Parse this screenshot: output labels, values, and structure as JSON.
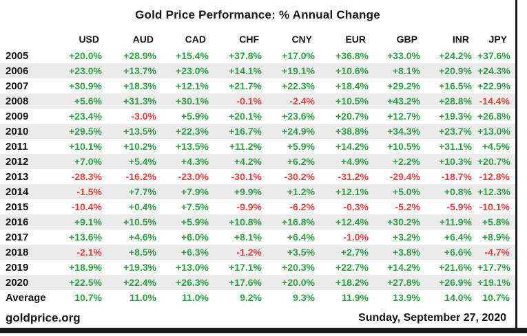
{
  "title": "Gold Price Performance: % Annual Change",
  "chart_data": {
    "type": "table",
    "title": "Gold Price Performance: % Annual Change",
    "columns": [
      "USD",
      "AUD",
      "CAD",
      "CHF",
      "CNY",
      "EUR",
      "GBP",
      "INR",
      "JPY"
    ],
    "rows": [
      {
        "label": "2005",
        "values": [
          "+20.0%",
          "+28.9%",
          "+15.4%",
          "+37.8%",
          "+17.0%",
          "+36.8%",
          "+33.0%",
          "+24.2%",
          "+37.6%"
        ]
      },
      {
        "label": "2006",
        "values": [
          "+23.0%",
          "+13.7%",
          "+23.0%",
          "+14.1%",
          "+19.1%",
          "+10.6%",
          "+8.1%",
          "+20.9%",
          "+24.3%"
        ]
      },
      {
        "label": "2007",
        "values": [
          "+30.9%",
          "+18.3%",
          "+12.1%",
          "+21.7%",
          "+22.3%",
          "+18.4%",
          "+29.2%",
          "+16.5%",
          "+22.9%"
        ]
      },
      {
        "label": "2008",
        "values": [
          "+5.6%",
          "+31.3%",
          "+30.1%",
          "-0.1%",
          "-2.4%",
          "+10.5%",
          "+43.2%",
          "+28.8%",
          "-14.4%"
        ]
      },
      {
        "label": "2009",
        "values": [
          "+23.4%",
          "-3.0%",
          "+5.9%",
          "+20.1%",
          "+23.6%",
          "+20.7%",
          "+12.7%",
          "+19.3%",
          "+26.8%"
        ]
      },
      {
        "label": "2010",
        "values": [
          "+29.5%",
          "+13.5%",
          "+22.3%",
          "+16.7%",
          "+24.9%",
          "+38.8%",
          "+34.3%",
          "+23.7%",
          "+13.0%"
        ]
      },
      {
        "label": "2011",
        "values": [
          "+10.1%",
          "+10.2%",
          "+13.5%",
          "+11.2%",
          "+5.9%",
          "+14.2%",
          "+10.5%",
          "+31.1%",
          "+4.5%"
        ]
      },
      {
        "label": "2012",
        "values": [
          "+7.0%",
          "+5.4%",
          "+4.3%",
          "+4.2%",
          "+6.2%",
          "+4.9%",
          "+2.2%",
          "+10.3%",
          "+20.7%"
        ]
      },
      {
        "label": "2013",
        "values": [
          "-28.3%",
          "-16.2%",
          "-23.0%",
          "-30.1%",
          "-30.2%",
          "-31.2%",
          "-29.4%",
          "-18.7%",
          "-12.8%"
        ]
      },
      {
        "label": "2014",
        "values": [
          "-1.5%",
          "+7.7%",
          "+7.9%",
          "+9.9%",
          "+1.2%",
          "+12.1%",
          "+5.0%",
          "+0.8%",
          "+12.3%"
        ]
      },
      {
        "label": "2015",
        "values": [
          "-10.4%",
          "+0.4%",
          "+7.5%",
          "-9.9%",
          "-6.2%",
          "-0.3%",
          "-5.2%",
          "-5.9%",
          "-10.1%"
        ]
      },
      {
        "label": "2016",
        "values": [
          "+9.1%",
          "+10.5%",
          "+5.9%",
          "+10.8%",
          "+16.8%",
          "+12.4%",
          "+30.2%",
          "+11.9%",
          "+5.8%"
        ]
      },
      {
        "label": "2017",
        "values": [
          "+13.6%",
          "+4.6%",
          "+6.0%",
          "+8.1%",
          "+6.4%",
          "-1.0%",
          "+3.2%",
          "+6.4%",
          "+8.9%"
        ]
      },
      {
        "label": "2018",
        "values": [
          "-2.1%",
          "+8.5%",
          "+6.3%",
          "-1.2%",
          "+3.5%",
          "+2.7%",
          "+3.8%",
          "+6.6%",
          "-4.7%"
        ]
      },
      {
        "label": "2019",
        "values": [
          "+18.9%",
          "+19.3%",
          "+13.0%",
          "+17.1%",
          "+20.3%",
          "+22.7%",
          "+14.2%",
          "+21.6%",
          "+17.7%"
        ]
      },
      {
        "label": "2020",
        "values": [
          "+22.5%",
          "+22.4%",
          "+26.3%",
          "+17.6%",
          "+20.0%",
          "+18.2%",
          "+27.8%",
          "+26.9%",
          "+19.1%"
        ]
      },
      {
        "label": "Average",
        "values": [
          "10.7%",
          "11.0%",
          "11.0%",
          "9.2%",
          "9.3%",
          "11.9%",
          "13.9%",
          "14.0%",
          "10.7%"
        ]
      }
    ]
  },
  "footer": {
    "source": "goldprice.org",
    "date": "Sunday, September 27, 2020"
  },
  "colors": {
    "positive": "#2f9e44",
    "negative": "#e04040",
    "stripe": "#ebebeb",
    "accent_bar": "#1b1b1b"
  }
}
